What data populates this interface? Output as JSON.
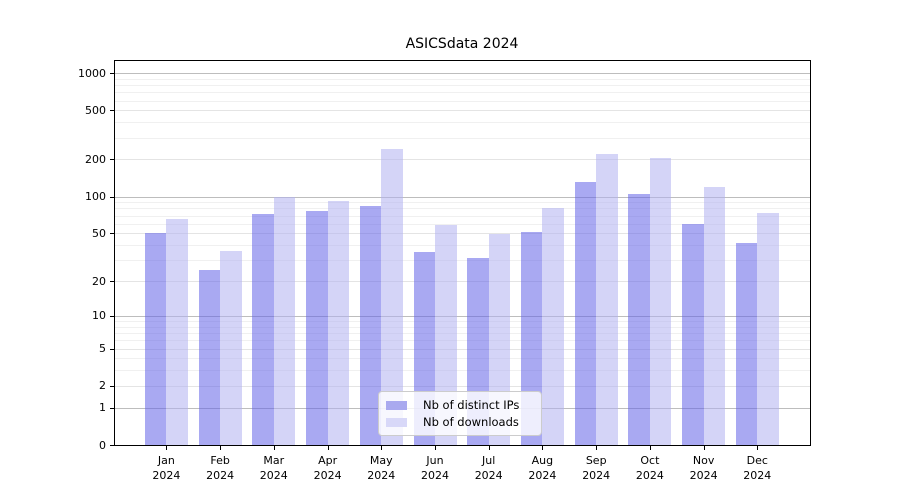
{
  "chart_data": {
    "type": "bar",
    "title": "ASICSdata 2024",
    "categories": [
      "Jan",
      "Feb",
      "Mar",
      "Apr",
      "May",
      "Jun",
      "Jul",
      "Aug",
      "Sep",
      "Oct",
      "Nov",
      "Dec"
    ],
    "category_year": "2024",
    "series": [
      {
        "name": "Nb of distinct IPs",
        "color": "#a9a9ef",
        "fill": "rgba(99,99,231,0.55)",
        "values": [
          50,
          25,
          72,
          76,
          83,
          35,
          31,
          51,
          132,
          105,
          60,
          42
        ]
      },
      {
        "name": "Nb of downloads",
        "color": "#d8d8f8",
        "fill": "rgba(177,177,241,0.55)",
        "values": [
          66,
          36,
          100,
          92,
          242,
          59,
          49,
          80,
          220,
          204,
          119,
          74
        ]
      }
    ],
    "yscale": "log1p",
    "yticks": [
      0,
      1,
      2,
      5,
      10,
      20,
      50,
      100,
      200,
      500,
      1000
    ],
    "major_grid_ticks": [
      1,
      10,
      100,
      1000
    ],
    "minor_grid_ticks": [
      3,
      4,
      6,
      7,
      8,
      9,
      30,
      40,
      60,
      70,
      80,
      90,
      300,
      400,
      600,
      700,
      800,
      900
    ],
    "ylim": [
      0,
      1250
    ],
    "grid": "horizontal",
    "legend_position": "lower-center"
  }
}
